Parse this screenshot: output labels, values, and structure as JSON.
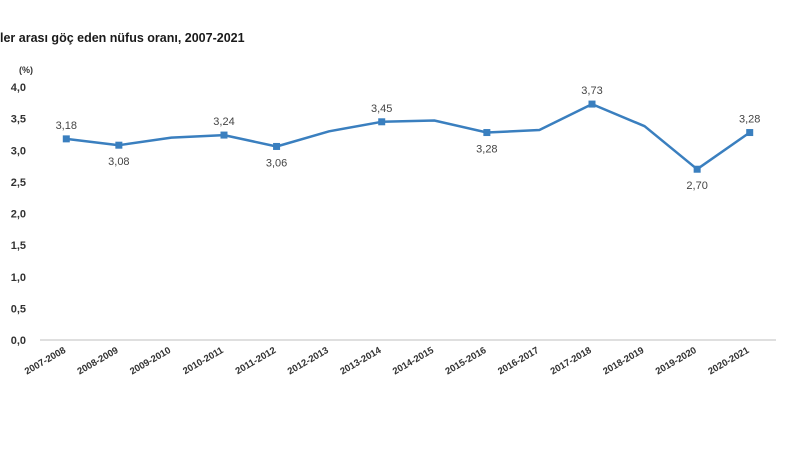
{
  "chart_data": {
    "type": "line",
    "title": "ler arası göç eden nüfus oranı, 2007-2021",
    "unit_label": "(%)",
    "ylim": [
      0,
      4.0
    ],
    "y_ticks": [
      "0,0",
      "0,5",
      "1,0",
      "1,5",
      "2,0",
      "2,5",
      "3,0",
      "3,5",
      "4,0"
    ],
    "y_tick_values": [
      0,
      0.5,
      1.0,
      1.5,
      2.0,
      2.5,
      3.0,
      3.5,
      4.0
    ],
    "categories": [
      "2007-2008",
      "2008-2009",
      "2009-2010",
      "2010-2011",
      "2011-2012",
      "2012-2013",
      "2013-2014",
      "2014-2015",
      "2015-2016",
      "2016-2017",
      "2017-2018",
      "2018-2019",
      "2019-2020",
      "2020-2021"
    ],
    "series": [
      {
        "values": [
          3.18,
          3.08,
          3.2,
          3.24,
          3.06,
          3.3,
          3.45,
          3.47,
          3.28,
          3.32,
          3.73,
          3.38,
          2.7,
          3.28
        ],
        "markers": [
          true,
          true,
          false,
          true,
          true,
          false,
          true,
          false,
          true,
          false,
          true,
          false,
          true,
          true
        ],
        "data_labels": [
          "3,18",
          "3,08",
          "",
          "3,24",
          "3,06",
          "",
          "3,45",
          "",
          "3,28",
          "",
          "3,73",
          "",
          "2,70",
          "3,28"
        ],
        "label_position": [
          "above",
          "below",
          "",
          "above",
          "below",
          "",
          "above",
          "",
          "below",
          "",
          "above",
          "",
          "below",
          "above"
        ]
      }
    ],
    "grid": false,
    "legend": "none",
    "line_color": "#3a7fbf"
  }
}
